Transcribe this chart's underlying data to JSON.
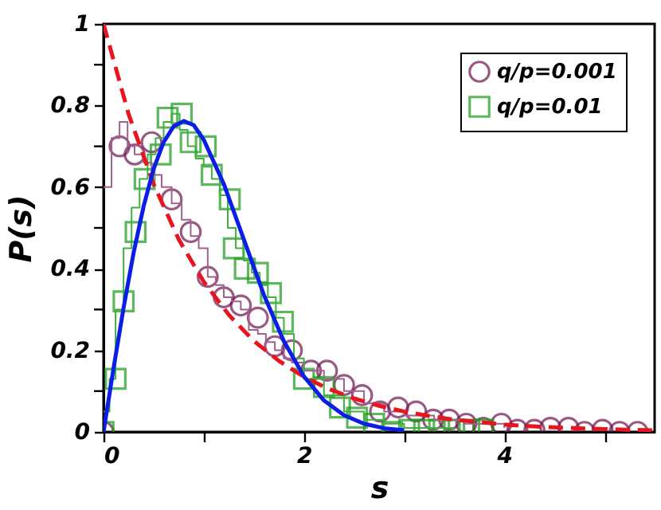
{
  "chart_data": {
    "type": "scatter",
    "xlabel": "s",
    "ylabel": "P(s)",
    "xlim": [
      0,
      5.5
    ],
    "ylim": [
      0,
      1
    ],
    "xticks": [
      0,
      {
        "value": 1,
        "label": null
      },
      2,
      {
        "value": 3,
        "label": null
      },
      4,
      {
        "value": 5,
        "label": null
      }
    ],
    "yticks": [
      0,
      {
        "value": 0.1,
        "label": null
      },
      0.2,
      {
        "value": 0.3,
        "label": null
      },
      0.4,
      {
        "value": 0.5,
        "label": null
      },
      0.6,
      {
        "value": 0.7,
        "label": null
      },
      0.8,
      {
        "value": 0.9,
        "label": null
      },
      1
    ],
    "grid": false,
    "legend": "top right",
    "series": [
      {
        "name": "q/p=0.001",
        "type": "scatter",
        "marker": "circle",
        "color": "#70144f",
        "x": [
          0,
          0.16,
          0.31,
          0.48,
          0.68,
          0.87,
          1.04,
          1.2,
          1.37,
          1.54,
          1.71,
          1.88,
          2.07,
          2.23,
          2.4,
          2.58,
          2.76,
          2.94,
          3.12,
          3.29,
          3.45,
          3.62,
          3.79,
          3.97,
          4.13,
          4.3,
          4.46,
          4.64,
          4.8,
          4.98,
          5.15,
          5.33
        ],
        "values": [
          0,
          0.7,
          0.68,
          0.71,
          0.57,
          0.49,
          0.38,
          0.33,
          0.31,
          0.28,
          0.21,
          0.2,
          0.15,
          0.15,
          0.115,
          0.09,
          0.05,
          0.06,
          0.05,
          0.03,
          0.03,
          0.02,
          0.01,
          0.02,
          0.005,
          0.005,
          0.01,
          0.01,
          0,
          0.005,
          0,
          0
        ]
      },
      {
        "name": "q/p=0.01",
        "type": "scatter",
        "marker": "square",
        "color": "#1a9a1a",
        "x": [
          0,
          0.12,
          0.2,
          0.32,
          0.41,
          0.57,
          0.64,
          0.78,
          0.87,
          1.02,
          1.08,
          1.26,
          1.3,
          1.41,
          1.54,
          1.67,
          1.79,
          2.0,
          2.2,
          2.36,
          2.53,
          2.7,
          2.88,
          3.05,
          3.2,
          3.35,
          3.5,
          3.65,
          3.79
        ],
        "values": [
          0,
          0.13,
          0.32,
          0.49,
          0.62,
          0.68,
          0.77,
          0.78,
          0.71,
          0.7,
          0.63,
          0.57,
          0.45,
          0.4,
          0.39,
          0.34,
          0.27,
          0.13,
          0.11,
          0.06,
          0.035,
          0.02,
          0,
          0.005,
          0.005,
          0.005,
          0.005,
          0.005,
          0.005
        ]
      },
      {
        "type": "step",
        "line_style": "solid",
        "color": "#a06090",
        "x": [
          0,
          0.08,
          0.16,
          0.24,
          0.31,
          0.4,
          0.48,
          0.58,
          0.68,
          0.78,
          0.87,
          0.95,
          1.04,
          1.12,
          1.2,
          1.28,
          1.37,
          1.45,
          1.54,
          1.62,
          1.71,
          1.8,
          1.88,
          2.0,
          2.2,
          2.4,
          2.6,
          2.8,
          3.0,
          3.3,
          3.6,
          4.0
        ],
        "values": [
          0.6,
          0.72,
          0.76,
          0.7,
          0.68,
          0.66,
          0.63,
          0.6,
          0.56,
          0.52,
          0.48,
          0.45,
          0.38,
          0.36,
          0.33,
          0.32,
          0.3,
          0.25,
          0.24,
          0.22,
          0.2,
          0.18,
          0.17,
          0.15,
          0.13,
          0.1,
          0.07,
          0.05,
          0.04,
          0.03,
          0.02,
          0.01
        ]
      },
      {
        "type": "step",
        "line_style": "solid",
        "color": "#40b040",
        "x": [
          0,
          0.06,
          0.12,
          0.2,
          0.28,
          0.36,
          0.44,
          0.52,
          0.6,
          0.68,
          0.76,
          0.84,
          0.92,
          1.0,
          1.08,
          1.16,
          1.24,
          1.32,
          1.4,
          1.48,
          1.56,
          1.64,
          1.72,
          1.8,
          1.9,
          2.0,
          2.2,
          2.4,
          2.6,
          2.8,
          3.0,
          3.5
        ],
        "values": [
          0.05,
          0.13,
          0.3,
          0.45,
          0.55,
          0.62,
          0.68,
          0.72,
          0.76,
          0.78,
          0.74,
          0.7,
          0.67,
          0.65,
          0.62,
          0.58,
          0.5,
          0.45,
          0.42,
          0.39,
          0.36,
          0.33,
          0.28,
          0.24,
          0.18,
          0.13,
          0.09,
          0.05,
          0.03,
          0.02,
          0.01,
          0.005
        ]
      },
      {
        "type": "line",
        "line_style": "dashed",
        "marker": "none",
        "color": "#e8141e",
        "x": [
          0,
          0.25,
          0.5,
          0.75,
          1,
          1.25,
          1.5,
          1.75,
          2,
          2.25,
          2.5,
          2.75,
          3,
          3.25,
          3.5,
          3.75,
          4,
          4.25,
          4.5,
          4.75,
          5,
          5.25,
          5.5
        ],
        "values": [
          1,
          0.779,
          0.607,
          0.472,
          0.368,
          0.287,
          0.223,
          0.174,
          0.135,
          0.105,
          0.082,
          0.064,
          0.05,
          0.039,
          0.03,
          0.024,
          0.018,
          0.014,
          0.011,
          0.009,
          0.007,
          0.005,
          0.004
        ]
      },
      {
        "type": "line",
        "line_style": "solid",
        "marker": "none",
        "color": "#0a1ee6",
        "x": [
          0,
          0.1,
          0.2,
          0.3,
          0.4,
          0.5,
          0.6,
          0.7,
          0.8,
          0.9,
          1.0,
          1.2,
          1.4,
          1.6,
          1.8,
          2.0,
          2.2,
          2.4,
          2.6,
          2.8,
          3.0
        ],
        "values": [
          0,
          0.156,
          0.304,
          0.439,
          0.553,
          0.645,
          0.71,
          0.749,
          0.762,
          0.752,
          0.716,
          0.608,
          0.472,
          0.336,
          0.222,
          0.136,
          0.077,
          0.041,
          0.02,
          0.009,
          0.004
        ]
      }
    ]
  }
}
